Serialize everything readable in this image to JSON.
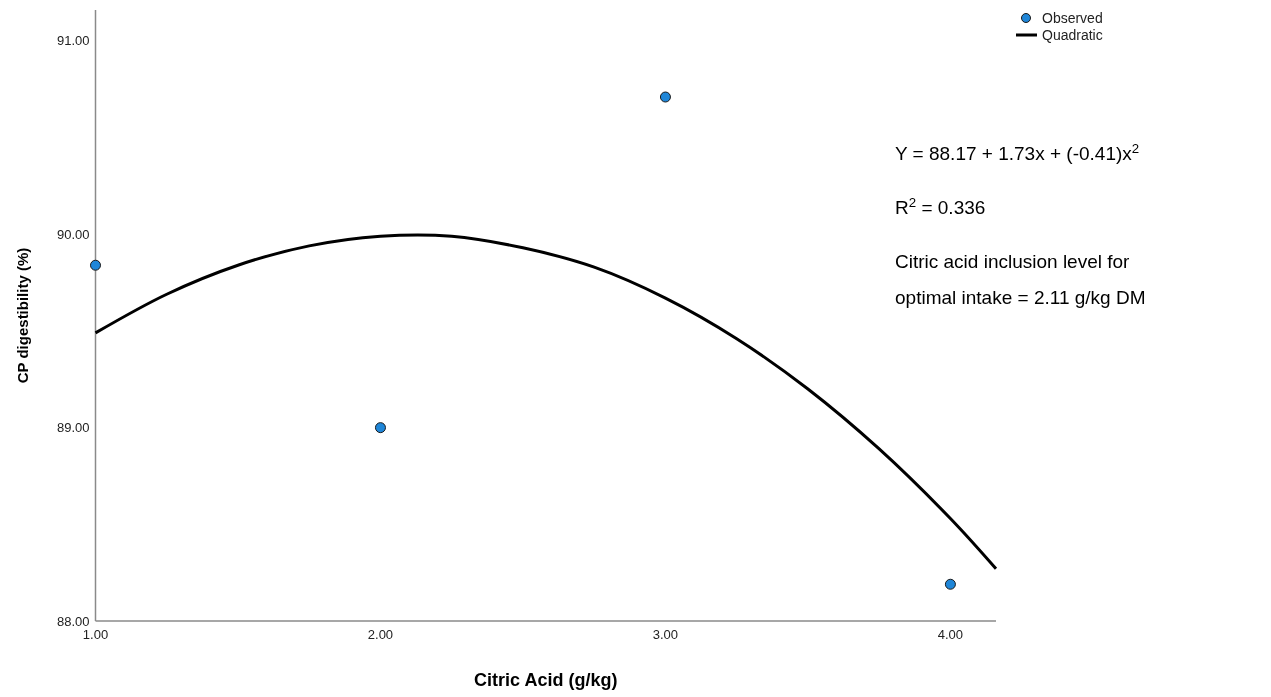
{
  "chart_data": {
    "type": "scatter",
    "xlabel": "Citric Acid (g/kg)",
    "ylabel": "CP digestibility (%)",
    "xlim": [
      1,
      4.16
    ],
    "ylim": [
      88,
      91.16
    ],
    "xticks": [
      {
        "value": 1,
        "label": "1.00"
      },
      {
        "value": 2,
        "label": "2.00"
      },
      {
        "value": 3,
        "label": "3.00"
      },
      {
        "value": 4,
        "label": "4.00"
      }
    ],
    "yticks": [
      {
        "value": 88,
        "label": "88.00"
      },
      {
        "value": 89,
        "label": "89.00"
      },
      {
        "value": 90,
        "label": "90.00"
      },
      {
        "value": 91,
        "label": "91.00"
      }
    ],
    "grid": false,
    "legend": "top right",
    "marker": "circle",
    "series": [
      {
        "name": "Observed",
        "color": "#1f86d8",
        "x": [
          1,
          2,
          3,
          4
        ],
        "values": [
          89.84,
          89.0,
          90.71,
          88.19
        ]
      },
      {
        "name": "Quadratic",
        "type": "line",
        "color": "#000000",
        "marker": "none",
        "line_style": "solid",
        "x": [
          1,
          1.25,
          1.5,
          1.75,
          2,
          2.25,
          2.5,
          2.75,
          3,
          3.25,
          3.5,
          3.75,
          4,
          4.16
        ],
        "values": [
          89.49,
          89.69,
          89.84,
          89.94,
          89.99,
          89.99,
          89.93,
          89.83,
          89.67,
          89.46,
          89.2,
          88.89,
          88.53,
          88.27
        ]
      }
    ],
    "annotations": [
      "Y = 88.17 + 1.73x + (-0.41)x$^{2}$",
      "R$^{2}$ = 0.336",
      "Citric acid inclusion level for optimal intake = 2.11 g/kg DM"
    ]
  }
}
